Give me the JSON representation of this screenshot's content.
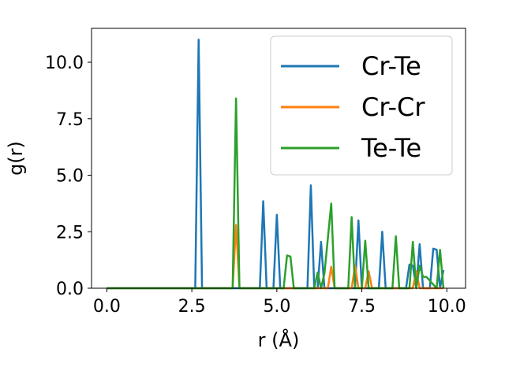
{
  "chart_data": {
    "type": "line",
    "xlabel": "r (Å)",
    "ylabel": "g(r)",
    "xlim": [
      -0.45,
      10.55
    ],
    "ylim": [
      0,
      11.5
    ],
    "xticks": [
      0.0,
      2.5,
      5.0,
      7.5,
      10.0
    ],
    "xtick_labels": [
      "0.0",
      "2.5",
      "5.0",
      "7.5",
      "10.0"
    ],
    "yticks": [
      0.0,
      2.5,
      5.0,
      7.5,
      10.0
    ],
    "ytick_labels": [
      "0.0",
      "2.5",
      "5.0",
      "7.5",
      "10.0"
    ],
    "grid": false,
    "legend_position": "top-right",
    "series": [
      {
        "name": "Cr-Te",
        "color": "#1f77b4",
        "x": [
          0,
          2.6,
          2.7,
          2.8,
          4.5,
          4.6,
          4.7,
          4.9,
          5.0,
          5.1,
          5.9,
          6.0,
          6.1,
          6.2,
          6.3,
          6.4,
          7.3,
          7.4,
          7.5,
          7.6,
          8.0,
          8.1,
          8.2,
          8.8,
          8.9,
          9.0,
          9.1,
          9.2,
          9.3,
          9.5,
          9.6,
          9.7,
          9.8,
          9.9
        ],
        "y": [
          0,
          0,
          11.0,
          0,
          0,
          3.85,
          0,
          0,
          3.25,
          0,
          0,
          4.55,
          0,
          0,
          2.05,
          0,
          0,
          3.0,
          0,
          0,
          0,
          2.5,
          0,
          0,
          1.05,
          1.0,
          0,
          1.95,
          0,
          0,
          1.75,
          1.7,
          0,
          0.8
        ]
      },
      {
        "name": "Cr-Cr",
        "color": "#ff7f0e",
        "x": [
          0,
          3.7,
          3.8,
          3.9,
          6.5,
          6.6,
          6.7,
          7.2,
          7.3,
          7.4,
          7.6,
          7.7,
          7.8,
          9.0,
          9.1,
          9.2,
          9.9
        ],
        "y": [
          0,
          0,
          2.8,
          0,
          0,
          0.95,
          0,
          0,
          1.0,
          0,
          0,
          0.75,
          0,
          0,
          0.75,
          0,
          0
        ]
      },
      {
        "name": "Te-Te",
        "color": "#2ca02c",
        "x": [
          0,
          3.7,
          3.8,
          3.9,
          5.2,
          5.3,
          5.4,
          5.5,
          6.1,
          6.2,
          6.3,
          6.4,
          6.5,
          6.6,
          6.7,
          7.1,
          7.2,
          7.3,
          7.5,
          7.6,
          7.7,
          8.4,
          8.5,
          8.6,
          8.9,
          9.0,
          9.1,
          9.2,
          9.3,
          9.4,
          9.7,
          9.8,
          9.9
        ],
        "y": [
          0,
          0,
          8.4,
          0,
          0,
          1.45,
          1.4,
          0,
          0,
          0.7,
          0,
          0.65,
          2.2,
          3.75,
          0,
          0,
          3.15,
          0,
          0,
          2.1,
          0,
          0,
          2.3,
          0,
          0,
          2.05,
          0,
          1.0,
          0.5,
          0.5,
          0,
          1.7,
          0
        ]
      }
    ]
  }
}
